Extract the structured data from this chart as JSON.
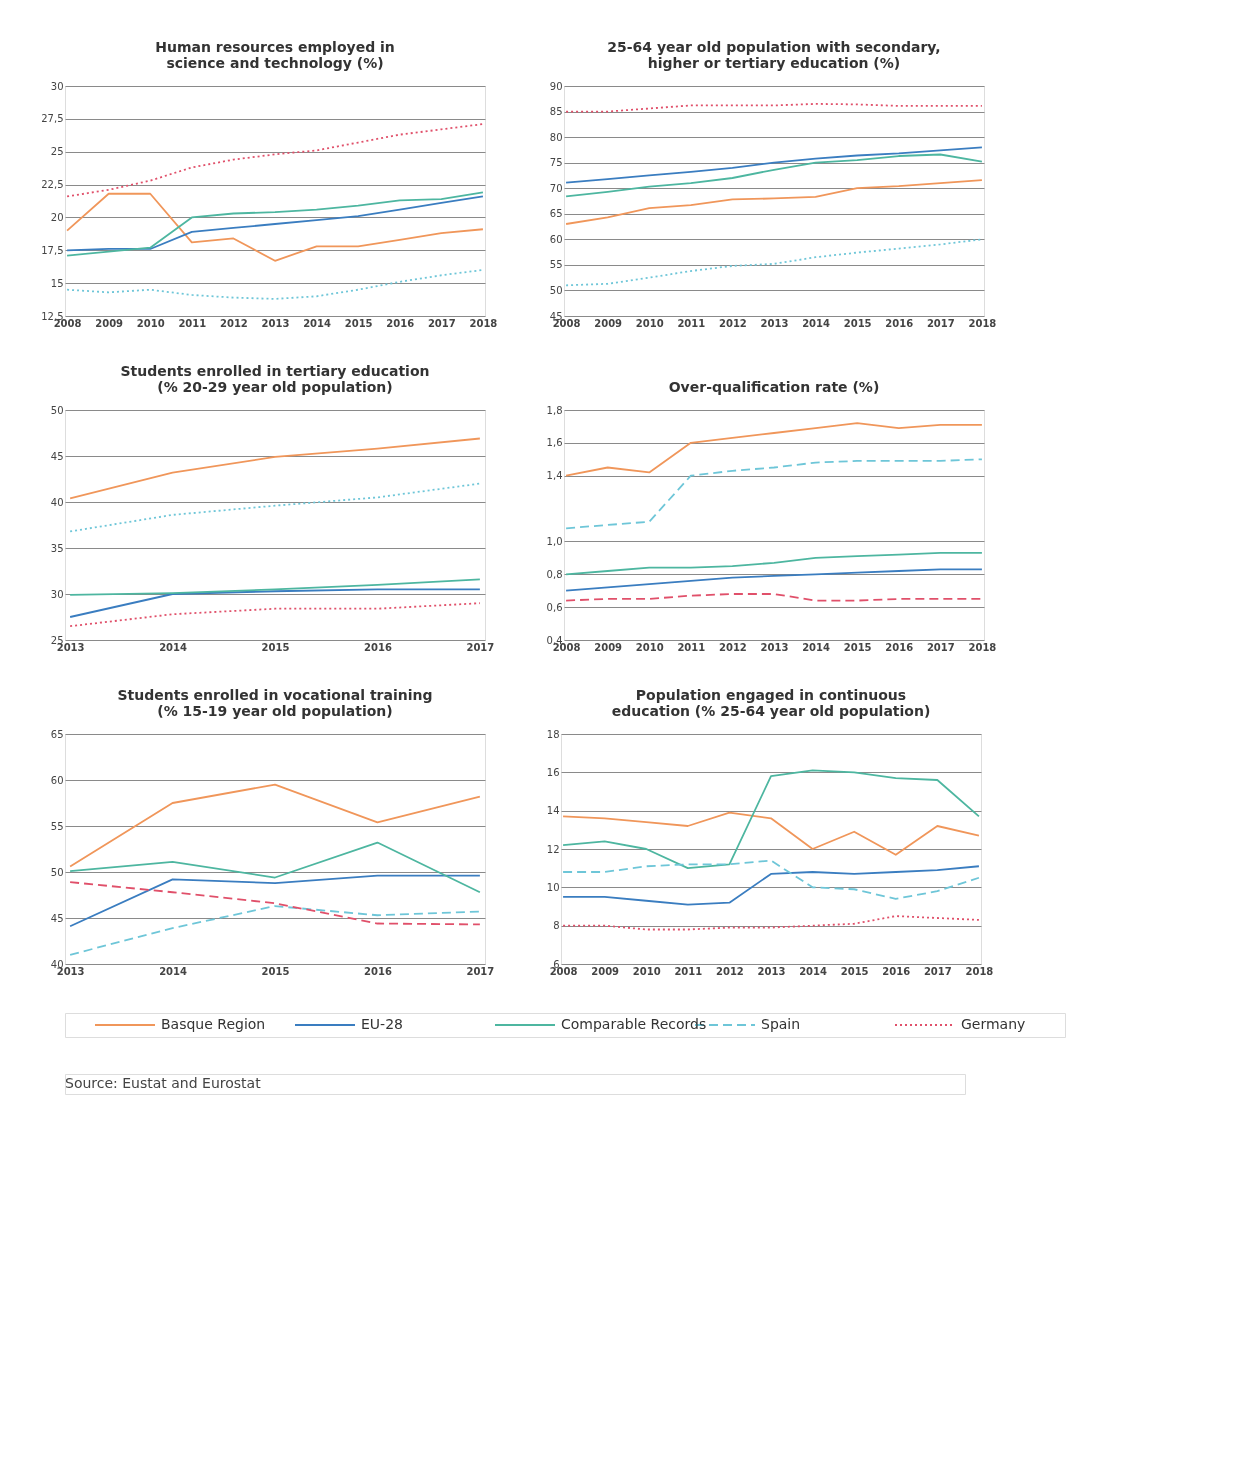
{
  "chart_data": [
    {
      "type": "line",
      "title": "Human resources employed in science and technology (%)",
      "categories": [
        "2008",
        "2009",
        "2010",
        "2011",
        "2012",
        "2013",
        "2014",
        "2015",
        "2016",
        "2017",
        "2018"
      ],
      "ylim": [
        12.5,
        30
      ],
      "yticks": [
        {
          "value": 12.5,
          "label": "12,5"
        },
        15,
        {
          "value": 17.5,
          "label": "17,5"
        },
        20,
        {
          "value": 22.5,
          "label": "22,5"
        },
        25,
        {
          "value": 27.5,
          "label": "27,5"
        },
        30
      ],
      "grid": "y",
      "legend": "bottom",
      "series": [
        {
          "name": "Basque Region",
          "color": "#f0965a",
          "line_style": "solid",
          "values": [
            19.0,
            21.8,
            21.8,
            18.1,
            18.4,
            16.7,
            17.8,
            17.8,
            18.3,
            18.8,
            19.1
          ]
        },
        {
          "name": "EU-28",
          "color": "#3a7dc0",
          "line_style": "solid",
          "values": [
            17.5,
            17.6,
            17.6,
            18.9,
            19.2,
            19.5,
            19.8,
            20.1,
            20.6,
            21.1,
            21.6
          ]
        },
        {
          "name": "Comparable Records",
          "color": "#4db6a0",
          "line_style": "solid",
          "values": [
            17.1,
            17.4,
            17.7,
            20.0,
            20.3,
            20.4,
            20.6,
            20.9,
            21.3,
            21.4,
            21.9
          ]
        },
        {
          "name": "Spain",
          "color": "#6ec6d8",
          "line_style": "dotted",
          "values": [
            14.5,
            14.3,
            14.5,
            14.1,
            13.9,
            13.8,
            14.0,
            14.5,
            15.1,
            15.6,
            16.0
          ]
        },
        {
          "name": "Germany",
          "color": "#e0506a",
          "line_style": "dotted",
          "values": [
            21.6,
            22.1,
            22.8,
            23.8,
            24.4,
            24.8,
            25.1,
            25.7,
            26.3,
            26.7,
            27.1
          ]
        }
      ]
    },
    {
      "type": "line",
      "title": "25-64 year old population with secondary, higher or tertiary education (%)",
      "categories": [
        "2008",
        "2009",
        "2010",
        "2011",
        "2012",
        "2013",
        "2014",
        "2015",
        "2016",
        "2017",
        "2018"
      ],
      "ylim": [
        45,
        90
      ],
      "yticks": [
        45,
        50,
        55,
        60,
        65,
        70,
        75,
        80,
        85,
        90
      ],
      "grid": "y",
      "legend": "bottom",
      "series": [
        {
          "name": "Basque Region",
          "color": "#f0965a",
          "line_style": "solid",
          "values": [
            63.0,
            64.3,
            66.1,
            66.7,
            67.8,
            68.0,
            68.3,
            70.0,
            70.4,
            71.0,
            71.6
          ]
        },
        {
          "name": "EU-28",
          "color": "#3a7dc0",
          "line_style": "solid",
          "values": [
            71.1,
            71.8,
            72.5,
            73.2,
            74.0,
            75.0,
            75.8,
            76.4,
            76.8,
            77.4,
            78.0
          ]
        },
        {
          "name": "Comparable Records",
          "color": "#4db6a0",
          "line_style": "solid",
          "values": [
            68.4,
            69.3,
            70.3,
            71.0,
            72.0,
            73.6,
            75.0,
            75.5,
            76.3,
            76.6,
            75.2
          ]
        },
        {
          "name": "Spain",
          "color": "#6ec6d8",
          "line_style": "dotted",
          "values": [
            51.0,
            51.3,
            52.5,
            53.8,
            54.8,
            55.2,
            56.5,
            57.4,
            58.2,
            59.0,
            60.0
          ]
        },
        {
          "name": "Germany",
          "color": "#e0506a",
          "line_style": "dotted",
          "values": [
            85.0,
            85.0,
            85.6,
            86.2,
            86.2,
            86.2,
            86.5,
            86.4,
            86.1,
            86.1,
            86.1
          ]
        }
      ]
    },
    {
      "type": "line",
      "title": "Students enrolled in tertiary education (% 20-29 year old population)",
      "categories": [
        "2013",
        "2014",
        "2015",
        "2016",
        "2017"
      ],
      "ylim": [
        25,
        50
      ],
      "yticks": [
        25,
        30,
        35,
        40,
        45,
        50
      ],
      "grid": "y",
      "legend": "bottom",
      "series": [
        {
          "name": "Basque Region",
          "color": "#f0965a",
          "line_style": "solid",
          "values": [
            40.4,
            43.2,
            44.9,
            45.8,
            46.9
          ]
        },
        {
          "name": "EU-28",
          "color": "#3a7dc0",
          "line_style": "solid",
          "values": [
            27.5,
            30.0,
            30.3,
            30.5,
            30.5
          ]
        },
        {
          "name": "Comparable Records",
          "color": "#4db6a0",
          "line_style": "solid",
          "values": [
            29.9,
            30.1,
            30.5,
            31.0,
            31.6
          ]
        },
        {
          "name": "Spain",
          "color": "#6ec6d8",
          "line_style": "dotted",
          "values": [
            36.8,
            38.6,
            39.6,
            40.5,
            42.0
          ]
        },
        {
          "name": "Germany",
          "color": "#e0506a",
          "line_style": "dotted",
          "values": [
            26.5,
            27.8,
            28.4,
            28.4,
            29.0
          ]
        }
      ]
    },
    {
      "type": "line",
      "title": "Over-qualification rate (%)",
      "categories": [
        "2008",
        "2009",
        "2010",
        "2011",
        "2012",
        "2013",
        "2014",
        "2015",
        "2016",
        "2017",
        "2018"
      ],
      "ylim": [
        0.4,
        1.8
      ],
      "yticks": [
        {
          "value": 0.4,
          "label": "0,4"
        },
        {
          "value": 0.6,
          "label": "0,6"
        },
        {
          "value": 0.8,
          "label": "0,8"
        },
        {
          "value": 1.0,
          "label": "1,0"
        },
        {
          "value": 1.4,
          "label": "1,4"
        },
        {
          "value": 1.6,
          "label": "1,6"
        },
        {
          "value": 1.8,
          "label": "1,8"
        }
      ],
      "grid": "y",
      "legend": "bottom",
      "series": [
        {
          "name": "Basque Region",
          "color": "#f0965a",
          "line_style": "solid",
          "values": [
            1.4,
            1.45,
            1.42,
            1.6,
            1.63,
            1.66,
            1.69,
            1.72,
            1.69,
            1.71,
            1.71
          ]
        },
        {
          "name": "EU-28",
          "color": "#3a7dc0",
          "line_style": "solid",
          "values": [
            0.7,
            0.72,
            0.74,
            0.76,
            0.78,
            0.79,
            0.8,
            0.81,
            0.82,
            0.83,
            0.83
          ]
        },
        {
          "name": "Comparable Records",
          "color": "#4db6a0",
          "line_style": "solid",
          "values": [
            0.8,
            0.82,
            0.84,
            0.84,
            0.85,
            0.87,
            0.9,
            0.91,
            0.92,
            0.93,
            0.93
          ]
        },
        {
          "name": "Spain",
          "color": "#6ec6d8",
          "line_style": "dashed",
          "values": [
            1.08,
            1.1,
            1.12,
            1.4,
            1.43,
            1.45,
            1.48,
            1.49,
            1.49,
            1.49,
            1.5
          ]
        },
        {
          "name": "Germany",
          "color": "#e0506a",
          "line_style": "dashed",
          "values": [
            0.64,
            0.65,
            0.65,
            0.67,
            0.68,
            0.68,
            0.64,
            0.64,
            0.65,
            0.65,
            0.65
          ]
        }
      ]
    },
    {
      "type": "line",
      "title": "Students enrolled in vocational training (% 15-19 year old population)",
      "categories": [
        "2013",
        "2014",
        "2015",
        "2016",
        "2017"
      ],
      "ylim": [
        40,
        65
      ],
      "yticks": [
        40,
        45,
        50,
        55,
        60,
        65
      ],
      "grid": "y",
      "legend": "bottom",
      "series": [
        {
          "name": "Basque Region",
          "color": "#f0965a",
          "line_style": "solid",
          "values": [
            50.6,
            57.5,
            59.5,
            55.4,
            58.2
          ]
        },
        {
          "name": "EU-28",
          "color": "#3a7dc0",
          "line_style": "solid",
          "values": [
            44.1,
            49.2,
            48.8,
            49.6,
            49.6
          ]
        },
        {
          "name": "Comparable Records",
          "color": "#4db6a0",
          "line_style": "solid",
          "values": [
            50.1,
            51.1,
            49.4,
            53.2,
            47.8
          ]
        },
        {
          "name": "Spain",
          "color": "#6ec6d8",
          "line_style": "dashed",
          "values": [
            41.0,
            43.9,
            46.3,
            45.3,
            45.7
          ]
        },
        {
          "name": "Germany",
          "color": "#e0506a",
          "line_style": "dashed",
          "values": [
            48.9,
            47.8,
            46.6,
            44.4,
            44.3
          ]
        }
      ]
    },
    {
      "type": "line",
      "title": "Population engaged in continuous education (% 25-64 year old population)",
      "categories": [
        "2008",
        "2009",
        "2010",
        "2011",
        "2012",
        "2013",
        "2014",
        "2015",
        "2016",
        "2017",
        "2018"
      ],
      "ylim": [
        6,
        18
      ],
      "yticks": [
        6,
        8,
        10,
        12,
        14,
        16,
        18
      ],
      "grid": "y",
      "legend": "bottom",
      "annotations": [
        "Source: Eustat and Eurostat"
      ],
      "series": [
        {
          "name": "Basque Region",
          "color": "#f0965a",
          "line_style": "solid",
          "values": [
            13.7,
            13.6,
            13.4,
            13.2,
            13.9,
            13.6,
            12.0,
            12.9,
            11.7,
            13.2,
            12.7
          ]
        },
        {
          "name": "EU-28",
          "color": "#3a7dc0",
          "line_style": "solid",
          "values": [
            9.5,
            9.5,
            9.3,
            9.1,
            9.2,
            10.7,
            10.8,
            10.7,
            10.8,
            10.9,
            11.1
          ]
        },
        {
          "name": "Comparable Records",
          "color": "#4db6a0",
          "line_style": "solid",
          "values": [
            12.2,
            12.4,
            12.0,
            11.0,
            11.2,
            15.8,
            16.1,
            16.0,
            15.7,
            15.6,
            13.7
          ]
        },
        {
          "name": "Spain",
          "color": "#6ec6d8",
          "line_style": "dashed",
          "values": [
            10.8,
            10.8,
            11.1,
            11.2,
            11.2,
            11.4,
            10.0,
            9.9,
            9.4,
            9.8,
            10.5
          ]
        },
        {
          "name": "Germany",
          "color": "#e0506a",
          "line_style": "dotted",
          "values": [
            8.0,
            8.0,
            7.8,
            7.8,
            7.9,
            7.9,
            8.0,
            8.1,
            8.5,
            8.4,
            8.3
          ]
        }
      ]
    }
  ]
}
